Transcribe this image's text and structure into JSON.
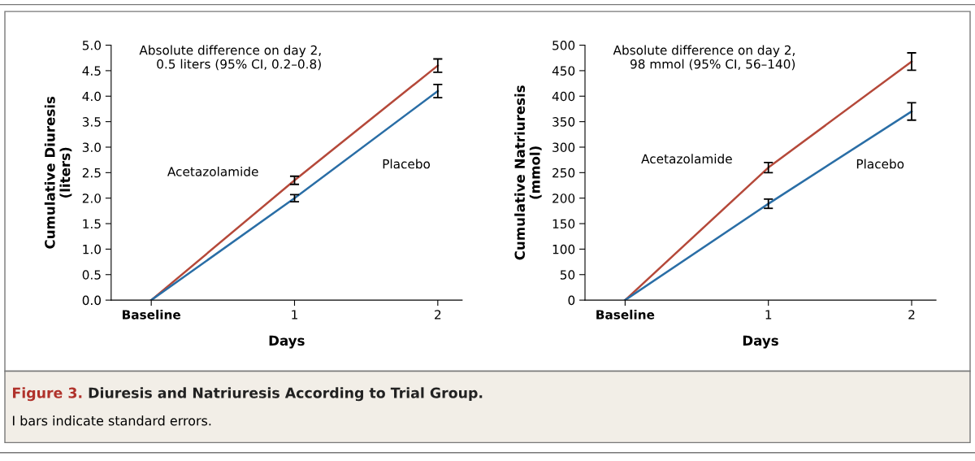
{
  "chart_data": [
    {
      "type": "line",
      "title": "Figure 3. Diuresis and Natriuresis According to Trial Group.",
      "xlabel": "Days",
      "ylabel": "Cumulative Diuresis\n(liters)",
      "x": [
        0,
        1,
        2
      ],
      "xlim": [
        -0.28,
        2.17
      ],
      "xticks": [
        {
          "value": 0,
          "label": "Baseline"
        },
        1,
        2
      ],
      "ylim": [
        0,
        5.0
      ],
      "yticks": [
        {
          "value": 0,
          "label": "0.0"
        },
        0.5,
        {
          "value": 1,
          "label": "1.0"
        },
        1.5,
        {
          "value": 2,
          "label": "2.0"
        },
        2.5,
        {
          "value": 3,
          "label": "3.0"
        },
        3.5,
        {
          "value": 4,
          "label": "4.0"
        },
        4.5,
        {
          "value": 5,
          "label": "5.0"
        }
      ],
      "series": [
        {
          "name": "Acetazolamide",
          "color": "#b5493a",
          "values": [
            0,
            2.35,
            4.6
          ],
          "errors": [
            null,
            0.08,
            0.13
          ]
        },
        {
          "name": "Placebo",
          "color": "#2a6ea6",
          "values": [
            0,
            2.0,
            4.1
          ],
          "errors": [
            null,
            0.07,
            0.13
          ]
        }
      ],
      "annotations": [
        "Absolute difference on day 2,\n0.5 liters (95% CI, 0.2–0.8)",
        "I bars indicate standard errors."
      ],
      "grid": false,
      "legend": false
    },
    {
      "type": "line",
      "xlabel": "Days",
      "ylabel": "Cumulative Natriuresis\n(mmol)",
      "x": [
        0,
        1,
        2
      ],
      "xlim": [
        -0.28,
        2.17
      ],
      "xticks": [
        {
          "value": 0,
          "label": "Baseline"
        },
        1,
        2
      ],
      "ylim": [
        0,
        500
      ],
      "yticks": [
        0,
        50,
        100,
        150,
        200,
        250,
        300,
        350,
        400,
        450,
        500
      ],
      "series": [
        {
          "name": "Acetazolamide",
          "color": "#b5493a",
          "values": [
            0,
            260,
            468
          ],
          "errors": [
            null,
            10,
            17
          ]
        },
        {
          "name": "Placebo",
          "color": "#2a6ea6",
          "values": [
            0,
            189,
            370
          ],
          "errors": [
            null,
            9,
            17
          ]
        }
      ],
      "annotations": [
        "Absolute difference on day 2,\n98 mmol (95% CI, 56–140)"
      ],
      "grid": false,
      "legend": false
    }
  ]
}
